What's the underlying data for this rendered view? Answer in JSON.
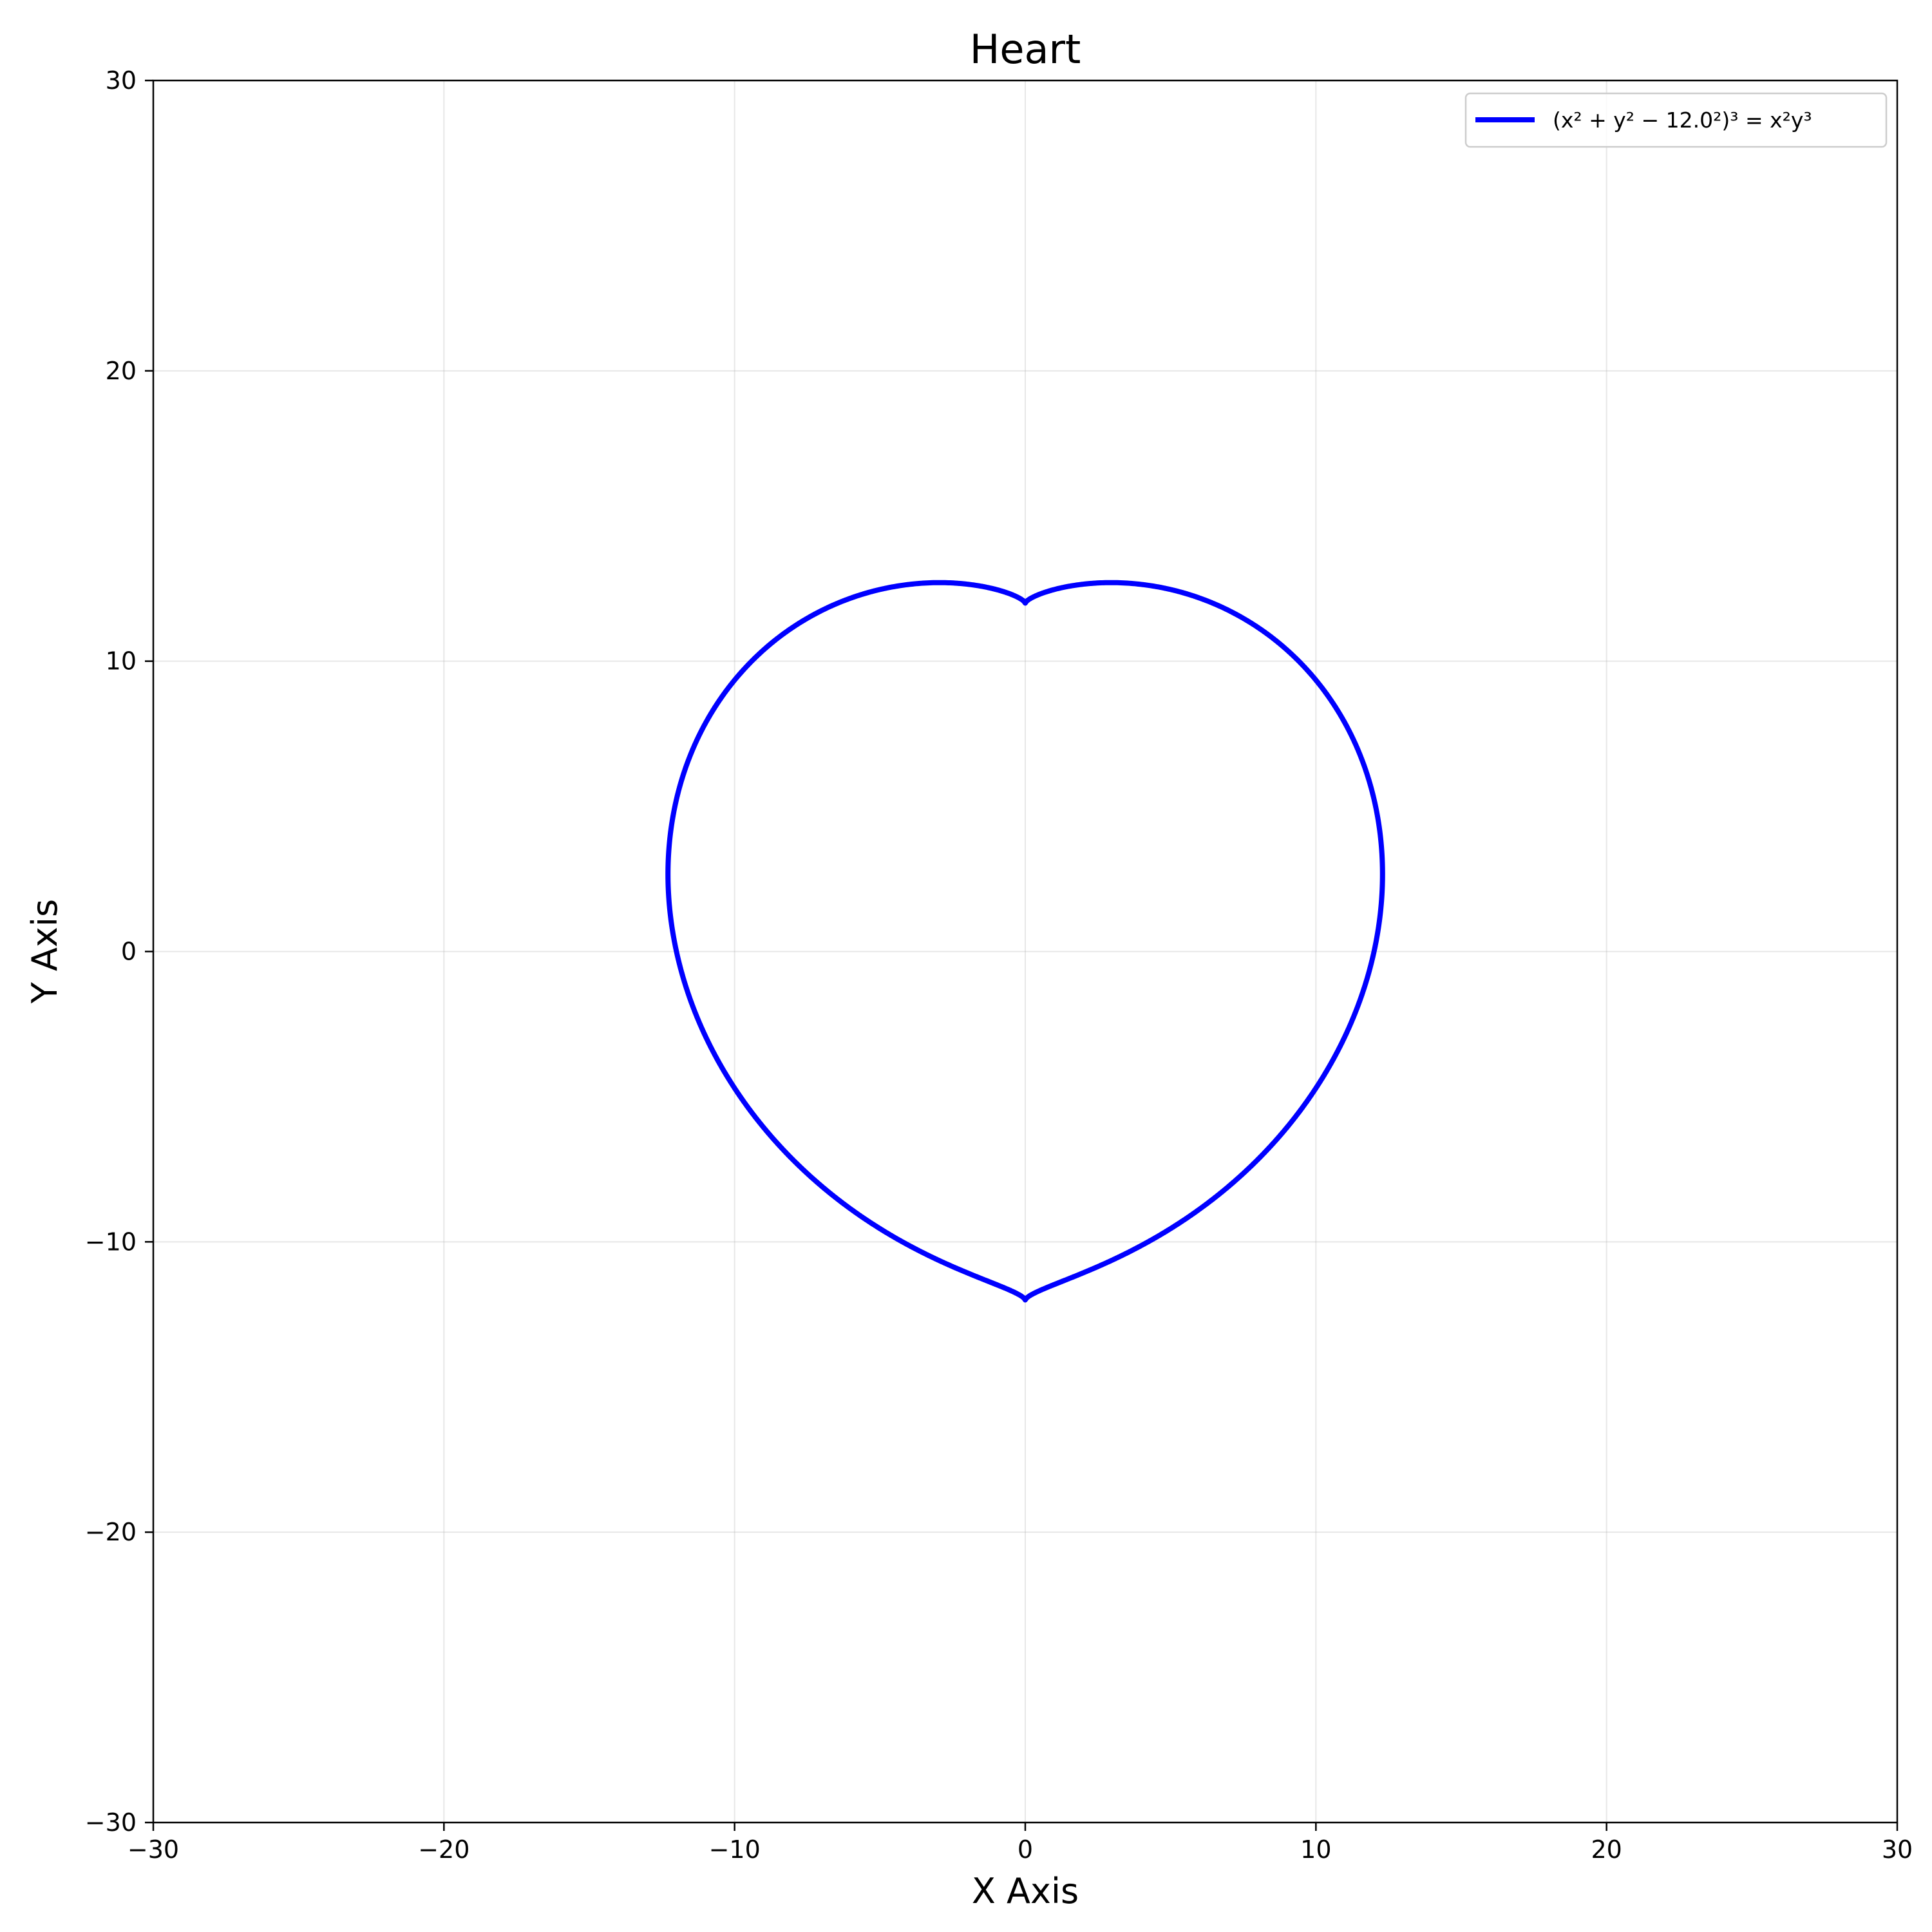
{
  "chart_data": {
    "type": "line",
    "title": "Heart",
    "xlabel": "X Axis",
    "ylabel": "Y Axis",
    "xlim": [
      -30,
      30
    ],
    "ylim": [
      -30,
      30
    ],
    "xticks": [
      -30,
      -20,
      -10,
      0,
      10,
      20,
      30
    ],
    "yticks": [
      -30,
      -20,
      -10,
      0,
      10,
      20,
      30
    ],
    "grid": true,
    "legend_placement": "top-right",
    "series": [
      {
        "name": "(x² + y² − 12.0²)³ = x²y³",
        "color": "#0000ff",
        "equation": {
          "r": 12.0
        },
        "x_range": [
          -12.0,
          12.0
        ]
      }
    ]
  }
}
